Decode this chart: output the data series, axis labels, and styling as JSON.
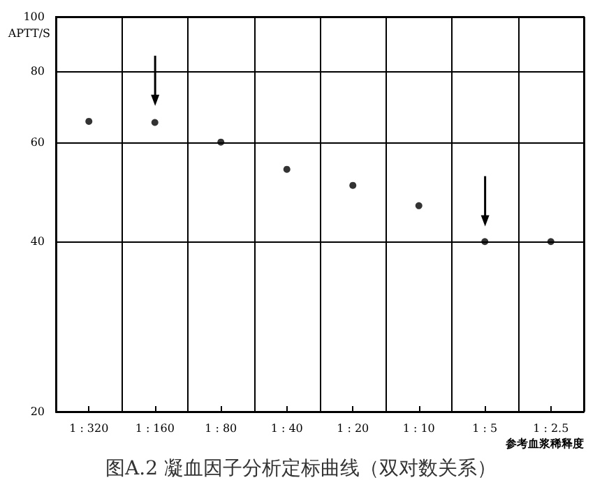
{
  "chart_data": {
    "type": "scatter",
    "title": "图A.2 凝血因子分析定标曲线（双对数关系）",
    "xlabel": "参考血浆稀释度",
    "ylabel": "APTT/S",
    "categories": [
      "1 : 320",
      "1 : 160",
      "1 : 80",
      "1 : 40",
      "1 : 20",
      "1 : 10",
      "1 : 5",
      "1 : 2.5"
    ],
    "values": [
      65.3,
      65,
      60,
      53.7,
      50.3,
      46.3,
      40,
      40
    ],
    "color": "#000000",
    "log": "y",
    "ylim": [
      20,
      100
    ],
    "yticks": [
      20,
      40,
      60,
      80,
      100
    ],
    "grid": true,
    "marker": "circle"
  }
}
